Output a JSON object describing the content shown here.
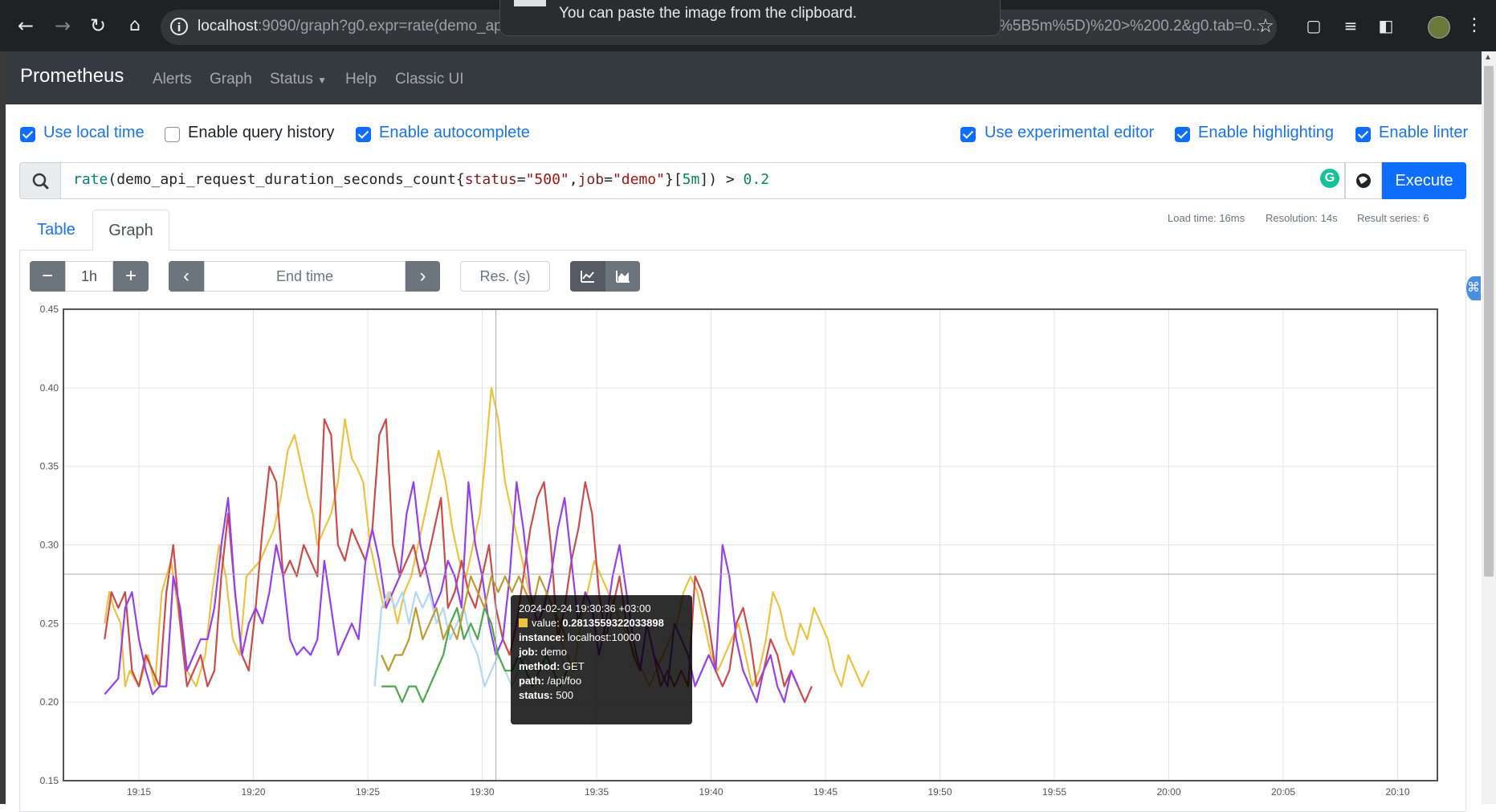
{
  "browser": {
    "url_host": "localhost",
    "url_rest": ":9090/graph?g0.expr=rate(demo_api_r",
    "url_tail": "%5B5m%5D)%20>%200.2&g0.tab=0...",
    "clipboard_tip": "You can paste the image from the clipboard.",
    "icons": [
      "back-arrow-icon",
      "forward-arrow-icon",
      "reload-icon",
      "home-icon",
      "site-info-icon",
      "star-icon",
      "extensions-icon",
      "media-icon",
      "side-panel-icon",
      "menu-icon"
    ]
  },
  "navbar": {
    "brand": "Prometheus",
    "links": [
      "Alerts",
      "Graph",
      "Status",
      "Help",
      "Classic UI"
    ]
  },
  "options": {
    "use_local_time": {
      "label": "Use local time",
      "checked": true
    },
    "enable_query_history": {
      "label": "Enable query history",
      "checked": false
    },
    "enable_autocomplete": {
      "label": "Enable autocomplete",
      "checked": true
    },
    "use_experimental_editor": {
      "label": "Use experimental editor",
      "checked": true
    },
    "enable_highlighting": {
      "label": "Enable highlighting",
      "checked": true
    },
    "enable_linter": {
      "label": "Enable linter",
      "checked": true
    }
  },
  "query": {
    "fn": "rate",
    "metric": "(demo_api_request_duration_seconds_count{",
    "lbl1": "status",
    "eq1": "=",
    "val1": "\"500\"",
    "comma": ",",
    "lbl2": "job",
    "eq2": "=",
    "val2": "\"demo\"",
    "close": "}[",
    "range": "5m",
    "tail": "]) > ",
    "threshold": "0.2",
    "execute_label": "Execute"
  },
  "stats": {
    "load_time": "Load time: 16ms",
    "resolution": "Resolution: 14s",
    "result_series": "Result series: 6"
  },
  "tabs": {
    "table": "Table",
    "graph": "Graph"
  },
  "graph_controls": {
    "range": "1h",
    "end_time_placeholder": "End time",
    "res_placeholder": "Res. (s)"
  },
  "colors": {
    "primary": "#0d6efd",
    "navbar": "#343a40"
  },
  "chart_data": {
    "type": "line",
    "ylim": [
      0.15,
      0.45
    ],
    "y_ticks": [
      "0.15",
      "0.20",
      "0.25",
      "0.30",
      "0.35",
      "0.40",
      "0.45"
    ],
    "x_ticks": [
      "19:15",
      "19:20",
      "19:25",
      "19:30",
      "19:35",
      "19:40",
      "19:45",
      "19:50",
      "19:55",
      "20:00",
      "20:05",
      "20:10"
    ],
    "series": [
      {
        "color": "#edc240",
        "x": [
          -1.5,
          -1.3,
          -1.1,
          -0.8,
          -0.6,
          -0.4,
          0.0,
          0.4,
          0.7,
          1.0,
          1.4,
          1.8,
          2.1,
          2.5,
          2.9,
          3.2,
          3.5,
          3.8,
          4.1,
          4.4,
          4.7,
          5.0,
          5.3,
          5.6,
          5.9,
          6.2,
          6.5,
          6.8,
          7.1,
          7.4,
          7.6,
          7.8,
          8.1,
          8.4,
          8.7,
          9.0,
          9.3,
          9.5,
          9.8,
          10.1,
          10.4,
          10.7,
          11.0,
          11.3,
          11.6,
          11.9,
          12.2,
          12.5,
          12.8,
          13.1,
          13.4,
          13.7,
          14.0,
          14.3,
          14.6,
          14.9,
          15.1,
          15.4,
          15.7,
          16.0,
          16.3,
          16.6,
          16.9,
          17.2,
          17.5,
          17.8,
          18.1,
          18.4,
          18.7,
          19.0,
          19.3,
          19.6,
          19.9,
          20.2,
          20.5,
          20.8,
          21.1,
          21.4,
          21.7,
          22.0,
          22.3,
          22.6,
          22.9,
          23.2,
          23.5,
          23.8,
          24.1,
          24.4,
          24.7,
          25.0,
          25.3,
          25.6,
          25.9,
          26.2,
          26.5,
          26.8,
          27.1,
          27.4,
          27.7,
          28.0,
          28.3,
          28.6,
          28.9,
          29.2,
          29.5,
          29.8,
          30.1,
          30.4,
          30.7,
          31.0,
          31.3,
          31.6,
          31.9
        ],
        "values": [
          0.25,
          0.27,
          0.26,
          0.25,
          0.21,
          0.22,
          0.21,
          0.23,
          0.21,
          0.27,
          0.29,
          0.25,
          0.22,
          0.21,
          0.23,
          0.27,
          0.3,
          0.28,
          0.24,
          0.23,
          0.28,
          0.285,
          0.29,
          0.3,
          0.31,
          0.33,
          0.36,
          0.37,
          0.35,
          0.33,
          0.32,
          0.3,
          0.31,
          0.32,
          0.34,
          0.38,
          0.355,
          0.35,
          0.34,
          0.3,
          0.28,
          0.26,
          0.27,
          0.25,
          0.27,
          0.28,
          0.3,
          0.32,
          0.34,
          0.36,
          0.34,
          0.31,
          0.29,
          0.28,
          0.3,
          0.32,
          0.35,
          0.4,
          0.38,
          0.34,
          0.32,
          0.3,
          0.28,
          0.26,
          0.25,
          0.27,
          0.26,
          0.24,
          0.23,
          0.22,
          0.25,
          0.27,
          0.29,
          0.28,
          0.27,
          0.26,
          0.25,
          0.24,
          0.23,
          0.22,
          0.21,
          0.22,
          0.23,
          0.24,
          0.25,
          0.27,
          0.28,
          0.27,
          0.25,
          0.23,
          0.22,
          0.23,
          0.24,
          0.25,
          0.23,
          0.21,
          0.22,
          0.24,
          0.27,
          0.26,
          0.24,
          0.23,
          0.25,
          0.24,
          0.26,
          0.25,
          0.24,
          0.22,
          0.21,
          0.23,
          0.22,
          0.21,
          0.22
        ]
      },
      {
        "color": "#cb4b4b",
        "x": [
          -1.5,
          -1.2,
          -0.9,
          -0.6,
          -0.3,
          0.0,
          0.3,
          0.6,
          0.9,
          1.2,
          1.5,
          1.8,
          2.1,
          2.4,
          2.7,
          3.0,
          3.3,
          3.6,
          3.9,
          4.2,
          4.5,
          4.8,
          5.1,
          5.4,
          5.7,
          6.0,
          6.3,
          6.6,
          6.9,
          7.2,
          7.5,
          7.8,
          8.1,
          8.4,
          8.7,
          9.0,
          9.3,
          9.6,
          9.9,
          10.2,
          10.5,
          10.8,
          11.1,
          11.4,
          11.7,
          12.0,
          12.3,
          12.6,
          12.9,
          13.2,
          13.5,
          13.8,
          14.1,
          14.4,
          14.7,
          15.0,
          15.3,
          15.6,
          15.9,
          16.2,
          16.5,
          16.8,
          17.1,
          17.4,
          17.7,
          18.0,
          18.3,
          18.6,
          18.9,
          19.2,
          19.5,
          19.8,
          20.1,
          20.4,
          20.7,
          21.0,
          21.3,
          21.6,
          21.9,
          22.2,
          22.5,
          22.8,
          23.1,
          23.4,
          23.7,
          24.0,
          24.3,
          24.6,
          24.9,
          25.2,
          25.5,
          25.8,
          26.1,
          26.4,
          26.7,
          27.0,
          27.3,
          27.6,
          27.9,
          28.2,
          28.5,
          28.8,
          29.1,
          29.4
        ],
        "values": [
          0.24,
          0.27,
          0.26,
          0.27,
          0.22,
          0.21,
          0.23,
          0.22,
          0.21,
          0.27,
          0.3,
          0.25,
          0.21,
          0.22,
          0.23,
          0.21,
          0.22,
          0.28,
          0.32,
          0.27,
          0.23,
          0.22,
          0.26,
          0.31,
          0.35,
          0.34,
          0.28,
          0.29,
          0.28,
          0.3,
          0.29,
          0.28,
          0.38,
          0.37,
          0.3,
          0.29,
          0.31,
          0.3,
          0.29,
          0.31,
          0.37,
          0.38,
          0.3,
          0.28,
          0.29,
          0.3,
          0.28,
          0.29,
          0.31,
          0.33,
          0.26,
          0.27,
          0.29,
          0.27,
          0.26,
          0.28,
          0.3,
          0.26,
          0.24,
          0.23,
          0.25,
          0.28,
          0.31,
          0.33,
          0.34,
          0.3,
          0.24,
          0.26,
          0.29,
          0.31,
          0.34,
          0.32,
          0.27,
          0.24,
          0.26,
          0.28,
          0.25,
          0.23,
          0.22,
          0.25,
          0.23,
          0.21,
          0.22,
          0.21,
          0.22,
          0.21,
          0.28,
          0.27,
          0.25,
          0.22,
          0.21,
          0.22,
          0.25,
          0.26,
          0.24,
          0.21,
          0.22,
          0.24,
          0.23,
          0.21,
          0.22,
          0.21,
          0.2,
          0.21
        ]
      },
      {
        "color": "#9440ed",
        "x": [
          -1.5,
          -1.2,
          -0.9,
          -0.6,
          -0.3,
          0.0,
          0.3,
          0.6,
          0.9,
          1.2,
          1.5,
          1.8,
          2.1,
          2.4,
          2.7,
          3.0,
          3.3,
          3.6,
          3.9,
          4.2,
          4.5,
          4.8,
          5.1,
          5.4,
          5.7,
          6.0,
          6.3,
          6.6,
          6.9,
          7.2,
          7.5,
          7.8,
          8.1,
          8.4,
          8.7,
          9.0,
          9.3,
          9.6,
          9.9,
          10.2,
          10.5,
          10.8,
          11.1,
          11.4,
          11.7,
          12.0,
          12.3,
          12.6,
          12.9,
          13.2,
          13.5,
          13.8,
          14.1,
          14.4,
          14.7,
          15.0,
          15.3,
          15.6,
          15.9,
          16.2,
          16.5,
          16.8,
          17.1,
          17.4,
          17.7,
          18.0,
          18.3,
          18.6,
          18.9,
          19.2,
          19.5,
          19.8,
          20.1,
          20.4,
          20.7,
          21.0,
          21.3,
          21.6,
          21.9,
          22.2,
          22.5,
          22.8,
          23.1,
          23.4,
          23.7,
          24.0,
          24.3,
          24.6,
          24.9,
          25.2,
          25.5,
          25.8,
          26.1,
          26.4,
          26.7,
          27.0,
          27.3,
          27.6,
          27.9,
          28.2,
          28.5,
          28.8
        ],
        "values": [
          0.205,
          0.21,
          0.215,
          0.26,
          0.27,
          0.24,
          0.22,
          0.205,
          0.21,
          0.21,
          0.28,
          0.26,
          0.22,
          0.23,
          0.24,
          0.24,
          0.26,
          0.3,
          0.33,
          0.27,
          0.23,
          0.25,
          0.26,
          0.25,
          0.27,
          0.3,
          0.28,
          0.24,
          0.23,
          0.235,
          0.23,
          0.24,
          0.29,
          0.26,
          0.23,
          0.24,
          0.25,
          0.24,
          0.29,
          0.31,
          0.29,
          0.26,
          0.27,
          0.28,
          0.32,
          0.34,
          0.3,
          0.28,
          0.26,
          0.27,
          0.29,
          0.28,
          0.26,
          0.34,
          0.3,
          0.28,
          0.25,
          0.23,
          0.24,
          0.28,
          0.34,
          0.31,
          0.27,
          0.25,
          0.26,
          0.28,
          0.31,
          0.33,
          0.29,
          0.25,
          0.27,
          0.26,
          0.23,
          0.25,
          0.28,
          0.3,
          0.27,
          0.24,
          0.22,
          0.25,
          0.23,
          0.22,
          0.21,
          0.25,
          0.24,
          0.23,
          0.21,
          0.22,
          0.23,
          0.22,
          0.3,
          0.28,
          0.24,
          0.22,
          0.21,
          0.2,
          0.22,
          0.23,
          0.21,
          0.2,
          0.22,
          0.21
        ]
      },
      {
        "color": "#afd8f8",
        "x": [
          10.3,
          10.6,
          10.9,
          11.2,
          11.5,
          11.8,
          12.1,
          12.4,
          12.7,
          13.0,
          13.3,
          13.6,
          13.9,
          14.2,
          14.5,
          14.8,
          15.1,
          15.4,
          15.7,
          16.0,
          16.3,
          16.6,
          16.9,
          17.2,
          17.5,
          17.8,
          18.1,
          18.4,
          18.7
        ],
        "values": [
          0.21,
          0.26,
          0.27,
          0.26,
          0.27,
          0.25,
          0.27,
          0.26,
          0.27,
          0.25,
          0.26,
          0.24,
          0.25,
          0.26,
          0.24,
          0.23,
          0.21,
          0.22,
          0.23,
          0.22,
          0.21,
          0.22,
          0.23,
          0.22,
          0.22,
          0.23,
          0.235,
          0.23,
          0.22
        ]
      },
      {
        "color": "#4da74d",
        "x": [
          10.6,
          10.9,
          11.2,
          11.5,
          11.8,
          12.1,
          12.4,
          12.7,
          13.0,
          13.3,
          13.6,
          13.9,
          14.2,
          14.5,
          14.8,
          15.1,
          15.4,
          15.7,
          16.0,
          16.3,
          16.6,
          16.9,
          17.2,
          17.5,
          17.8,
          18.1,
          18.4,
          18.7
        ],
        "values": [
          0.21,
          0.21,
          0.21,
          0.2,
          0.21,
          0.21,
          0.2,
          0.21,
          0.22,
          0.23,
          0.25,
          0.26,
          0.24,
          0.25,
          0.24,
          0.26,
          0.25,
          0.23,
          0.22,
          0.22,
          0.23,
          0.22,
          0.21,
          0.22,
          0.23,
          0.22,
          0.21,
          0.22
        ]
      },
      {
        "color": "#bd9b33",
        "x": [
          10.6,
          10.9,
          11.2,
          11.5,
          11.8,
          12.1,
          12.4,
          12.7,
          13.0,
          13.3,
          13.6,
          13.9,
          14.2,
          14.5,
          14.8,
          15.1,
          15.4,
          15.7,
          16.0,
          16.3,
          16.6,
          16.9,
          17.2,
          17.5,
          17.8,
          18.1,
          18.4,
          18.7
        ],
        "values": [
          0.23,
          0.22,
          0.23,
          0.23,
          0.24,
          0.26,
          0.24,
          0.25,
          0.26,
          0.24,
          0.25,
          0.24,
          0.26,
          0.28,
          0.27,
          0.26,
          0.28,
          0.27,
          0.28,
          0.27,
          0.28,
          0.27,
          0.26,
          0.28,
          0.27,
          0.26,
          0.25,
          0.24
        ]
      }
    ],
    "tooltip": {
      "time": "2024-02-24 19:30:36 +03:00",
      "value_label": "value:",
      "value": "0.2813559322033898",
      "instance_label": "instance:",
      "instance": "localhost:10000",
      "job_label": "job:",
      "job": "demo",
      "method_label": "method:",
      "method": "GET",
      "path_label": "path:",
      "path": "/api/foo",
      "status_label": "status:",
      "status": "500"
    }
  }
}
